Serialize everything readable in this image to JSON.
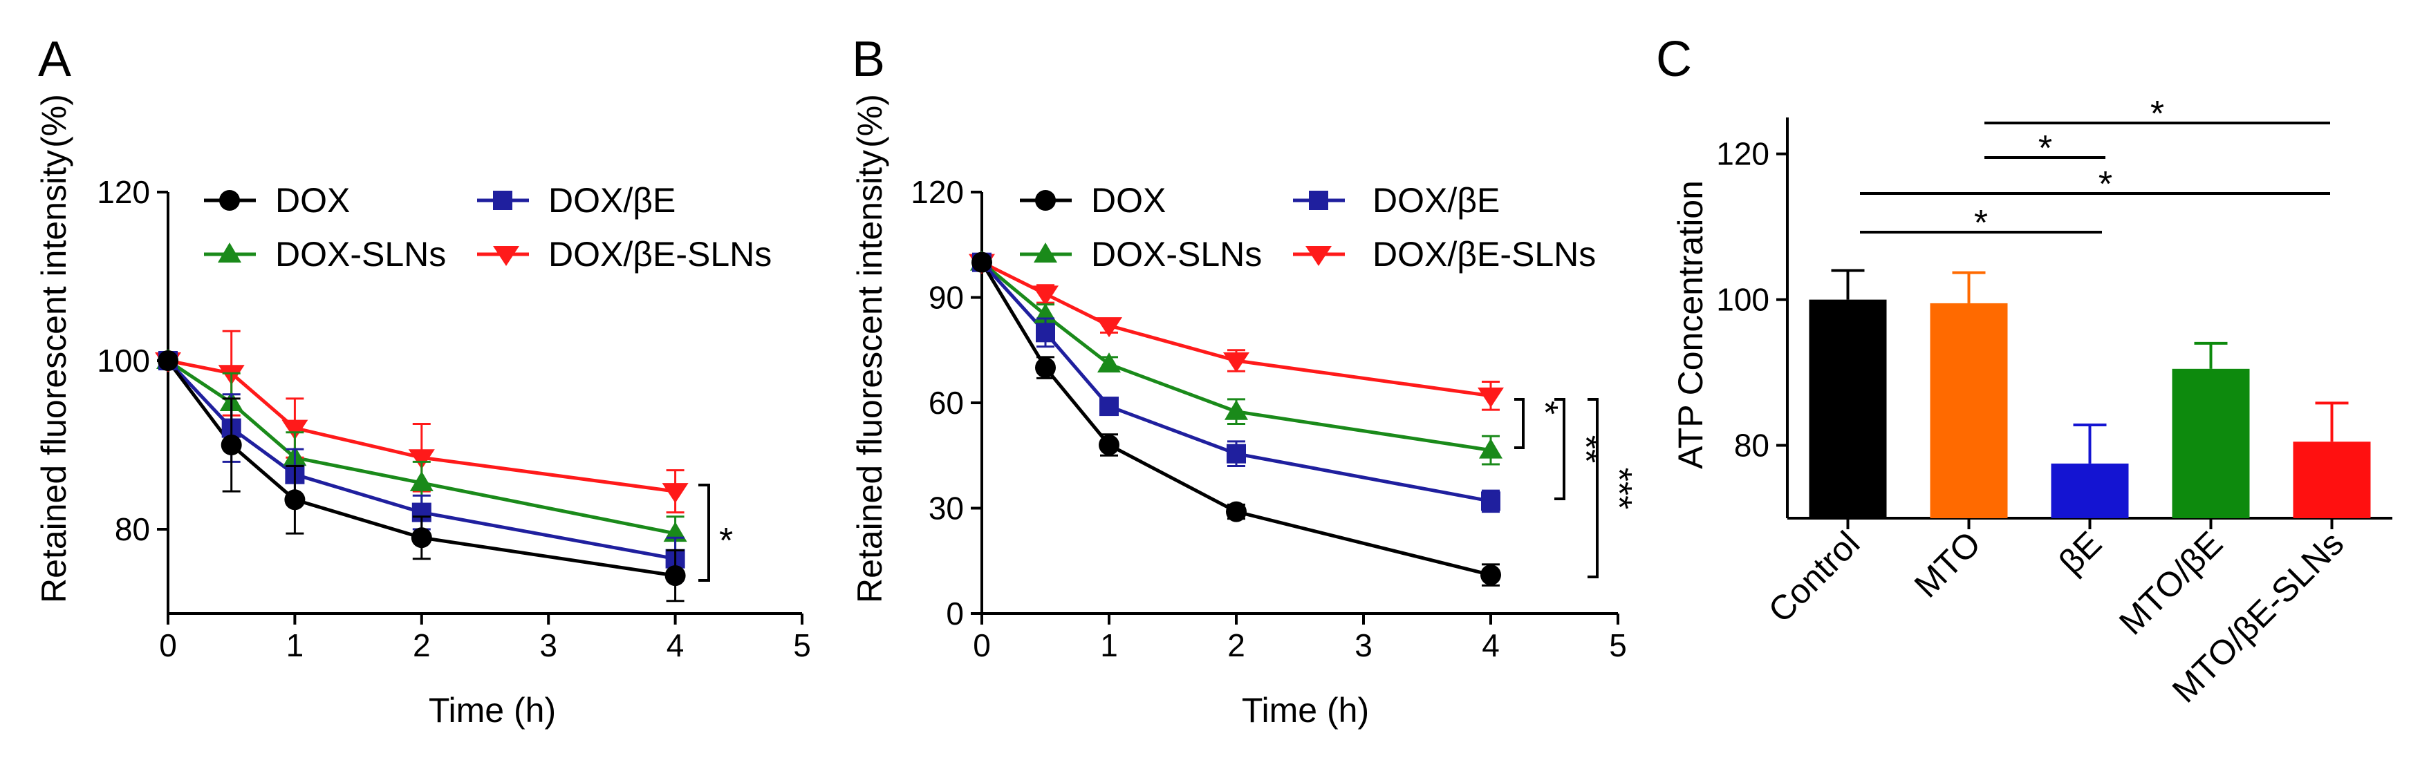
{
  "chart_data": [
    {
      "panel": "A",
      "type": "line",
      "xlabel": "Time (h)",
      "ylabel": "Retained fluorescent intensity",
      "ylabel_unit": "(%)",
      "xlim": [
        0,
        5
      ],
      "ylim": [
        70,
        120
      ],
      "xticks": [
        "0",
        "1",
        "2",
        "3",
        "4",
        "5"
      ],
      "yticks": [
        "80",
        "100",
        "120"
      ],
      "x": [
        0,
        0.5,
        1,
        2,
        4
      ],
      "series": [
        {
          "name": "DOX",
          "color": "#000000",
          "marker": "circle",
          "values": [
            100,
            90,
            83.5,
            79,
            74.5
          ],
          "errors": [
            0,
            5.5,
            4,
            2.5,
            3
          ]
        },
        {
          "name": "DOX/βE",
          "color": "#1f1f9e",
          "marker": "square",
          "values": [
            100,
            92,
            86.5,
            82,
            76.5
          ],
          "errors": [
            0,
            4,
            3,
            2,
            2.5
          ]
        },
        {
          "name": "DOX-SLNs",
          "color": "#1a8a1a",
          "marker": "triangle-up",
          "values": [
            100,
            95,
            88.5,
            85.5,
            79.5
          ],
          "errors": [
            0,
            3.5,
            3,
            2.5,
            2
          ]
        },
        {
          "name": "DOX/βE-SLNs",
          "color": "#ff1a1a",
          "marker": "triangle-down",
          "values": [
            100,
            98.5,
            92,
            88.5,
            84.5
          ],
          "errors": [
            0,
            5,
            3.5,
            4,
            2.5
          ]
        }
      ],
      "annotations": [
        "*"
      ]
    },
    {
      "panel": "B",
      "type": "line",
      "xlabel": "Time (h)",
      "ylabel": "Retained fluorescent intensity",
      "ylabel_unit": "(%)",
      "xlim": [
        0,
        5
      ],
      "ylim": [
        0,
        120
      ],
      "xticks": [
        "0",
        "1",
        "2",
        "3",
        "4",
        "5"
      ],
      "yticks": [
        "0",
        "30",
        "60",
        "90",
        "120"
      ],
      "x": [
        0,
        0.5,
        1,
        2,
        4
      ],
      "series": [
        {
          "name": "DOX",
          "color": "#000000",
          "marker": "circle",
          "values": [
            100,
            70,
            48,
            29,
            11
          ],
          "errors": [
            0,
            3,
            3,
            2,
            3
          ]
        },
        {
          "name": "DOX/βE",
          "color": "#1f1f9e",
          "marker": "square",
          "values": [
            100,
            80,
            59,
            45.5,
            32
          ],
          "errors": [
            0,
            4,
            2,
            3.5,
            3
          ]
        },
        {
          "name": "DOX-SLNs",
          "color": "#1a8a1a",
          "marker": "triangle-up",
          "values": [
            100,
            85,
            71,
            57.5,
            46.5
          ],
          "errors": [
            0,
            3,
            2,
            3.5,
            4
          ]
        },
        {
          "name": "DOX/βE-SLNs",
          "color": "#ff1a1a",
          "marker": "triangle-down",
          "values": [
            100,
            91,
            82,
            72,
            62
          ],
          "errors": [
            0,
            2.5,
            2,
            3,
            4
          ]
        }
      ],
      "annotations": [
        "*",
        "**",
        "***"
      ]
    },
    {
      "panel": "C",
      "type": "bar",
      "ylabel": "ATP Concentration",
      "ylim": [
        70,
        125
      ],
      "yticks": [
        "80",
        "100",
        "120"
      ],
      "categories": [
        "Control",
        "MTO",
        "βE",
        "MTO/βE",
        "MTO/βE-SLNs"
      ],
      "values": [
        100,
        99.5,
        77.5,
        90.5,
        80.5
      ],
      "errors": [
        4,
        4.2,
        5.3,
        3.5,
        5.3
      ],
      "colors": [
        "#000000",
        "#ff6a00",
        "#1414d2",
        "#0d8a0d",
        "#ff1010"
      ],
      "annotations": [
        "*",
        "*",
        "*",
        "*"
      ]
    }
  ]
}
